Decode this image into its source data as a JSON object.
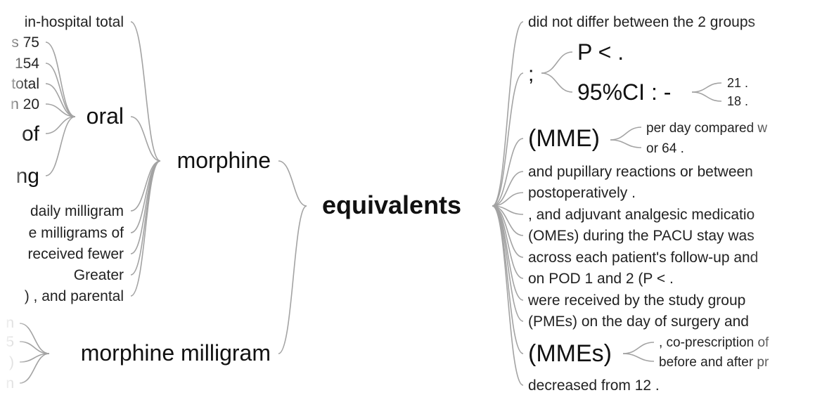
{
  "center": {
    "label": "equivalents"
  },
  "left": {
    "morphine": {
      "label": "morphine",
      "oral": {
        "label": "oral",
        "children": [
          "in-hospital total",
          "s 75",
          "154",
          "total",
          "n 20",
          "of",
          "ng"
        ]
      },
      "children": [
        "daily milligram",
        "e milligrams of",
        "received fewer",
        "Greater",
        ") , and parental"
      ]
    },
    "morphine_milligram": {
      "label": "morphine milligram",
      "children": [
        "n",
        "5",
        ")",
        "n"
      ]
    }
  },
  "right": {
    "children": [
      "did not differ between the 2 groups",
      ";",
      "(MME)",
      "and pupillary reactions or between",
      "postoperatively .",
      ", and adjuvant analgesic medicatio",
      "(OMEs) during the PACU stay was",
      "across each patient's follow-up and",
      "on POD 1 and 2 (P < .",
      "were received by the study group",
      "(PMEs) on the day of surgery and",
      "(MMEs)",
      "decreased from 12 ."
    ],
    "semicolon": {
      "p_label": "P < .",
      "ci_label": "95%CI : -",
      "ci_children": [
        "21 .",
        "18 ."
      ]
    },
    "mme": {
      "children": [
        "per day compared w",
        "or 64 ."
      ]
    },
    "mmes": {
      "children": [
        ", co-prescription of",
        "before and after pr"
      ]
    }
  }
}
